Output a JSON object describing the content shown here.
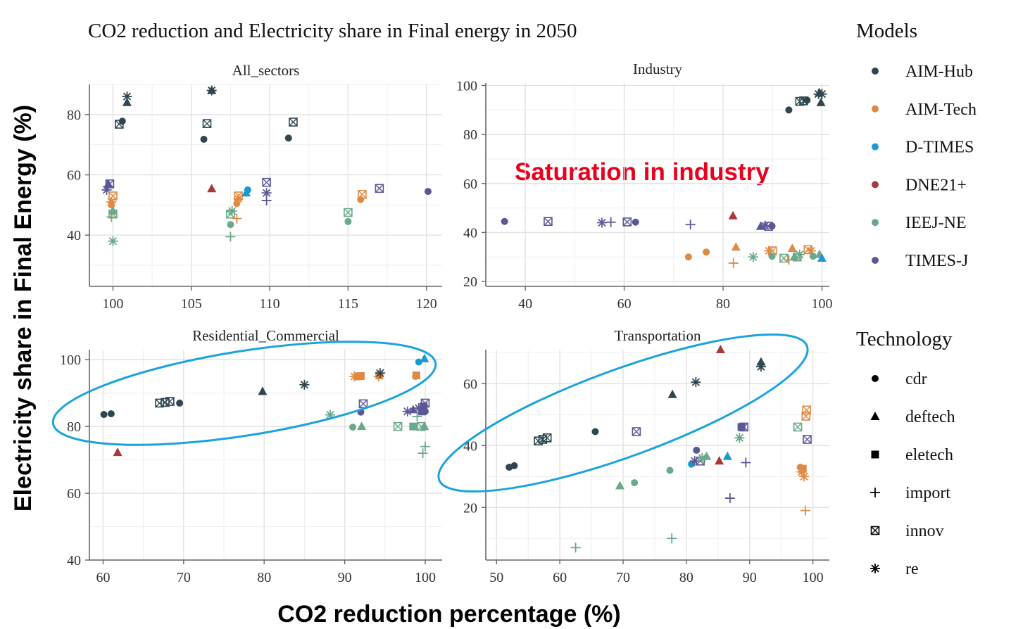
{
  "chart_data": {
    "type": "scatter",
    "title": "CO2 reduction and Electricity share in Final energy in 2050",
    "xlabel": "CO2 reduction percentage (%)",
    "ylabel": "Electricity share in Final Energy (%)",
    "annotation": "Saturation in industry",
    "legend_placement": "right",
    "grid": true,
    "legend_models": {
      "title": "Models",
      "items": [
        {
          "name": "AIM-Hub",
          "color": "#2e4650"
        },
        {
          "name": "AIM-Tech",
          "color": "#e08a45"
        },
        {
          "name": "D-TIMES",
          "color": "#1a9ad2"
        },
        {
          "name": "DNE21+",
          "color": "#a8393a"
        },
        {
          "name": "IEEJ-NE",
          "color": "#6aa98a"
        },
        {
          "name": "TIMES-J",
          "color": "#5b5895"
        }
      ]
    },
    "legend_technology": {
      "title": "Technology",
      "items": [
        {
          "name": "cdr",
          "shape": "circle"
        },
        {
          "name": "deftech",
          "shape": "triangle"
        },
        {
          "name": "eletech",
          "shape": "square"
        },
        {
          "name": "import",
          "shape": "plus"
        },
        {
          "name": "innov",
          "shape": "boxx"
        },
        {
          "name": "re",
          "shape": "star"
        }
      ]
    },
    "panels": [
      {
        "title": "All_sectors",
        "xlim": [
          98.5,
          121
        ],
        "ylim": [
          23,
          90
        ],
        "xticks": [
          100,
          105,
          110,
          115,
          120
        ],
        "yticks": [
          40,
          60,
          80
        ],
        "points": [
          [
            100.6,
            77.8,
            "AIM-Hub",
            "cdr"
          ],
          [
            100.4,
            76.8,
            "AIM-Hub",
            "innov"
          ],
          [
            100.9,
            84,
            "AIM-Hub",
            "deftech"
          ],
          [
            100.9,
            86,
            "AIM-Hub",
            "re"
          ],
          [
            105.8,
            71.8,
            "AIM-Hub",
            "cdr"
          ],
          [
            106.0,
            77,
            "AIM-Hub",
            "innov"
          ],
          [
            106.3,
            88,
            "AIM-Hub",
            "re"
          ],
          [
            106.3,
            88,
            "AIM-Hub",
            "deftech"
          ],
          [
            111.2,
            72.2,
            "AIM-Hub",
            "cdr"
          ],
          [
            111.5,
            77.5,
            "AIM-Hub",
            "innov"
          ],
          [
            99.8,
            57,
            "TIMES-J",
            "innov"
          ],
          [
            99.6,
            55,
            "TIMES-J",
            "re"
          ],
          [
            99.7,
            57,
            "TIMES-J",
            "deftech"
          ],
          [
            99.9,
            46,
            "AIM-Tech",
            "import"
          ],
          [
            99.9,
            50,
            "AIM-Tech",
            "cdr"
          ],
          [
            100.0,
            53,
            "AIM-Tech",
            "innov"
          ],
          [
            99.9,
            51,
            "AIM-Tech",
            "re"
          ],
          [
            100.0,
            38,
            "IEEJ-NE",
            "re"
          ],
          [
            100.0,
            47,
            "IEEJ-NE",
            "innov"
          ],
          [
            100.0,
            48,
            "IEEJ-NE",
            "deftech"
          ],
          [
            106.3,
            55.4,
            "DNE21+",
            "deftech"
          ],
          [
            107.5,
            39.5,
            "IEEJ-NE",
            "import"
          ],
          [
            107.5,
            43.5,
            "IEEJ-NE",
            "cdr"
          ],
          [
            107.5,
            47,
            "IEEJ-NE",
            "innov"
          ],
          [
            107.6,
            48,
            "IEEJ-NE",
            "re"
          ],
          [
            107.9,
            45.5,
            "AIM-Tech",
            "import"
          ],
          [
            107.9,
            50.5,
            "AIM-Tech",
            "cdr"
          ],
          [
            108.0,
            53,
            "AIM-Tech",
            "innov"
          ],
          [
            108.0,
            52,
            "AIM-Tech",
            "re"
          ],
          [
            108.5,
            54,
            "D-TIMES",
            "deftech"
          ],
          [
            108.6,
            55,
            "D-TIMES",
            "cdr"
          ],
          [
            109.8,
            57.5,
            "TIMES-J",
            "innov"
          ],
          [
            109.8,
            54,
            "TIMES-J",
            "re"
          ],
          [
            109.8,
            51.5,
            "TIMES-J",
            "import"
          ],
          [
            115.0,
            44.5,
            "IEEJ-NE",
            "cdr"
          ],
          [
            115.0,
            47.5,
            "IEEJ-NE",
            "innov"
          ],
          [
            115.8,
            51.8,
            "AIM-Tech",
            "cdr"
          ],
          [
            115.9,
            53.5,
            "AIM-Tech",
            "innov"
          ],
          [
            117.0,
            55.5,
            "TIMES-J",
            "innov"
          ],
          [
            120.1,
            54.5,
            "TIMES-J",
            "cdr"
          ]
        ]
      },
      {
        "title": "Industry",
        "xlim": [
          32,
          101.5
        ],
        "ylim": [
          18,
          101
        ],
        "xticks": [
          40,
          60,
          80,
          100
        ],
        "yticks": [
          20,
          40,
          60,
          80,
          100
        ],
        "points": [
          [
            93.3,
            90,
            "AIM-Hub",
            "cdr"
          ],
          [
            95.5,
            93.5,
            "AIM-Hub",
            "innov"
          ],
          [
            96.3,
            93.7,
            "AIM-Hub",
            "innov"
          ],
          [
            97.0,
            94,
            "AIM-Hub",
            "cdr"
          ],
          [
            99.3,
            96.5,
            "AIM-Hub",
            "re"
          ],
          [
            99.5,
            97,
            "AIM-Hub",
            "deftech"
          ],
          [
            99.8,
            93,
            "AIM-Hub",
            "deftech"
          ],
          [
            100.0,
            96.5,
            "AIM-Hub",
            "re"
          ],
          [
            35.8,
            44.5,
            "TIMES-J",
            "cdr"
          ],
          [
            44.6,
            44.5,
            "TIMES-J",
            "innov"
          ],
          [
            55.5,
            44,
            "TIMES-J",
            "re"
          ],
          [
            57.3,
            44.2,
            "TIMES-J",
            "import"
          ],
          [
            60.6,
            44.3,
            "TIMES-J",
            "innov"
          ],
          [
            62.3,
            44.2,
            "TIMES-J",
            "cdr"
          ],
          [
            73.4,
            43.2,
            "TIMES-J",
            "import"
          ],
          [
            82.0,
            46.8,
            "DNE21+",
            "deftech"
          ],
          [
            73.0,
            30,
            "AIM-Tech",
            "cdr"
          ],
          [
            76.6,
            32,
            "AIM-Tech",
            "cdr"
          ],
          [
            82.1,
            27.5,
            "AIM-Tech",
            "import"
          ],
          [
            82.6,
            34,
            "AIM-Tech",
            "deftech"
          ],
          [
            86.1,
            30,
            "IEEJ-NE",
            "re"
          ],
          [
            87.6,
            42.5,
            "TIMES-J",
            "deftech"
          ],
          [
            88.5,
            42.8,
            "TIMES-J",
            "re"
          ],
          [
            89.2,
            42.5,
            "TIMES-J",
            "innov"
          ],
          [
            89.9,
            42.6,
            "TIMES-J",
            "cdr"
          ],
          [
            89.3,
            32.5,
            "AIM-Tech",
            "re"
          ],
          [
            90.0,
            32.5,
            "AIM-Tech",
            "innov"
          ],
          [
            89.9,
            30.3,
            "IEEJ-NE",
            "cdr"
          ],
          [
            92.3,
            29.5,
            "IEEJ-NE",
            "innov"
          ],
          [
            93.3,
            28.8,
            "AIM-Tech",
            "import"
          ],
          [
            94.0,
            33.5,
            "AIM-Tech",
            "deftech"
          ],
          [
            94.4,
            30,
            "IEEJ-NE",
            "deftech"
          ],
          [
            95.0,
            30,
            "IEEJ-NE",
            "innov"
          ],
          [
            95.5,
            31,
            "IEEJ-NE",
            "re"
          ],
          [
            97.2,
            33,
            "AIM-Tech",
            "innov"
          ],
          [
            97.8,
            32.5,
            "AIM-Tech",
            "re"
          ],
          [
            98.2,
            30.3,
            "IEEJ-NE",
            "cdr"
          ],
          [
            99.5,
            31,
            "IEEJ-NE",
            "deftech"
          ],
          [
            100.0,
            29.5,
            "D-TIMES",
            "deftech"
          ]
        ]
      },
      {
        "title": "Residential_Commercial",
        "xlim": [
          58.3,
          102.1
        ],
        "ylim": [
          40,
          103
        ],
        "xticks": [
          60,
          70,
          80,
          90,
          100
        ],
        "yticks": [
          40,
          60,
          80,
          100
        ],
        "points": [
          [
            60.1,
            83.6,
            "AIM-Hub",
            "cdr"
          ],
          [
            61.0,
            83.8,
            "AIM-Hub",
            "cdr"
          ],
          [
            61.8,
            72.2,
            "DNE21+",
            "deftech"
          ],
          [
            67.0,
            87,
            "AIM-Hub",
            "innov"
          ],
          [
            67.7,
            87.2,
            "AIM-Hub",
            "innov"
          ],
          [
            68.3,
            87.5,
            "AIM-Hub",
            "innov"
          ],
          [
            69.5,
            87,
            "AIM-Hub",
            "cdr"
          ],
          [
            79.8,
            90.5,
            "AIM-Hub",
            "deftech"
          ],
          [
            85.0,
            92.5,
            "AIM-Hub",
            "re"
          ],
          [
            88.2,
            83.5,
            "IEEJ-NE",
            "re"
          ],
          [
            91.0,
            79.8,
            "IEEJ-NE",
            "cdr"
          ],
          [
            92.1,
            80,
            "IEEJ-NE",
            "deftech"
          ],
          [
            92.0,
            84.3,
            "TIMES-J",
            "cdr"
          ],
          [
            92.3,
            86.8,
            "TIMES-J",
            "innov"
          ],
          [
            91.2,
            95,
            "AIM-Tech",
            "re"
          ],
          [
            91.6,
            95,
            "AIM-Tech",
            "eletech"
          ],
          [
            92.0,
            95.1,
            "AIM-Tech",
            "eletech"
          ],
          [
            94.2,
            95,
            "AIM-Tech",
            "import"
          ],
          [
            94.3,
            95.3,
            "AIM-Tech",
            "eletech"
          ],
          [
            94.4,
            96,
            "AIM-Hub",
            "re"
          ],
          [
            96.6,
            80,
            "IEEJ-NE",
            "innov"
          ],
          [
            98.8,
            95,
            "AIM-Tech",
            "cdr"
          ],
          [
            98.9,
            95.3,
            "AIM-Tech",
            "eletech"
          ],
          [
            99.2,
            99.3,
            "D-TIMES",
            "cdr"
          ],
          [
            99.9,
            100.3,
            "D-TIMES",
            "deftech"
          ],
          [
            98.5,
            80,
            "IEEJ-NE",
            "eletech"
          ],
          [
            99.5,
            80,
            "IEEJ-NE",
            "innov"
          ],
          [
            99.9,
            80,
            "IEEJ-NE",
            "deftech"
          ],
          [
            99.7,
            72,
            "IEEJ-NE",
            "import"
          ],
          [
            100.0,
            74,
            "IEEJ-NE",
            "import"
          ],
          [
            99.0,
            83,
            "IEEJ-NE",
            "import"
          ],
          [
            97.8,
            84.5,
            "TIMES-J",
            "re"
          ],
          [
            98.5,
            85,
            "TIMES-J",
            "deftech"
          ],
          [
            99.2,
            85.5,
            "TIMES-J",
            "re"
          ],
          [
            99.6,
            84.5,
            "TIMES-J",
            "eletech"
          ],
          [
            100.0,
            84.5,
            "TIMES-J",
            "cdr"
          ],
          [
            100.0,
            87,
            "TIMES-J",
            "innov"
          ],
          [
            99.8,
            86,
            "TIMES-J",
            "eletech"
          ]
        ]
      },
      {
        "title": "Transportation",
        "xlim": [
          48.3,
          102.6
        ],
        "ylim": [
          3,
          71
        ],
        "xticks": [
          50,
          60,
          70,
          80,
          90,
          100
        ],
        "yticks": [
          20,
          40,
          60
        ],
        "points": [
          [
            52.0,
            33,
            "AIM-Hub",
            "cdr"
          ],
          [
            52.8,
            33.5,
            "AIM-Hub",
            "cdr"
          ],
          [
            56.6,
            41.5,
            "AIM-Hub",
            "innov"
          ],
          [
            57.3,
            42,
            "AIM-Hub",
            "innov"
          ],
          [
            58.0,
            42.5,
            "AIM-Hub",
            "innov"
          ],
          [
            65.6,
            44.5,
            "AIM-Hub",
            "cdr"
          ],
          [
            72.1,
            44.5,
            "TIMES-J",
            "innov"
          ],
          [
            77.8,
            56.5,
            "AIM-Hub",
            "deftech"
          ],
          [
            81.5,
            60.5,
            "AIM-Hub",
            "re"
          ],
          [
            62.5,
            7,
            "IEEJ-NE",
            "import"
          ],
          [
            69.5,
            27,
            "IEEJ-NE",
            "deftech"
          ],
          [
            71.8,
            28,
            "IEEJ-NE",
            "cdr"
          ],
          [
            77.4,
            32,
            "IEEJ-NE",
            "cdr"
          ],
          [
            77.7,
            10,
            "IEEJ-NE",
            "import"
          ],
          [
            80.8,
            34,
            "D-TIMES",
            "cdr"
          ],
          [
            81.3,
            35,
            "TIMES-J",
            "re"
          ],
          [
            81.6,
            38.5,
            "TIMES-J",
            "cdr"
          ],
          [
            82.2,
            35,
            "TIMES-J",
            "innov"
          ],
          [
            82.5,
            36,
            "IEEJ-NE",
            "re"
          ],
          [
            83.2,
            36.5,
            "IEEJ-NE",
            "deftech"
          ],
          [
            85.2,
            35,
            "DNE21+",
            "deftech"
          ],
          [
            85.4,
            71,
            "DNE21+",
            "deftech"
          ],
          [
            86.5,
            36.5,
            "D-TIMES",
            "deftech"
          ],
          [
            86.9,
            23,
            "TIMES-J",
            "import"
          ],
          [
            88.4,
            42.5,
            "IEEJ-NE",
            "re"
          ],
          [
            88.7,
            46,
            "TIMES-J",
            "eletech"
          ],
          [
            89.1,
            46,
            "TIMES-J",
            "innov"
          ],
          [
            89.4,
            34.5,
            "TIMES-J",
            "import"
          ],
          [
            91.8,
            65.5,
            "AIM-Hub",
            "re"
          ],
          [
            91.8,
            67,
            "AIM-Hub",
            "deftech"
          ],
          [
            97.6,
            46,
            "IEEJ-NE",
            "innov"
          ],
          [
            98.0,
            33,
            "AIM-Tech",
            "cdr"
          ],
          [
            98.2,
            31.5,
            "AIM-Tech",
            "re"
          ],
          [
            98.4,
            32.5,
            "AIM-Tech",
            "eletech"
          ],
          [
            98.6,
            30,
            "AIM-Tech",
            "re"
          ],
          [
            98.8,
            19,
            "AIM-Tech",
            "import"
          ],
          [
            98.9,
            49.5,
            "AIM-Tech",
            "innov"
          ],
          [
            99.0,
            51.5,
            "AIM-Tech",
            "innov"
          ],
          [
            99.1,
            42,
            "TIMES-J",
            "innov"
          ]
        ]
      }
    ]
  }
}
